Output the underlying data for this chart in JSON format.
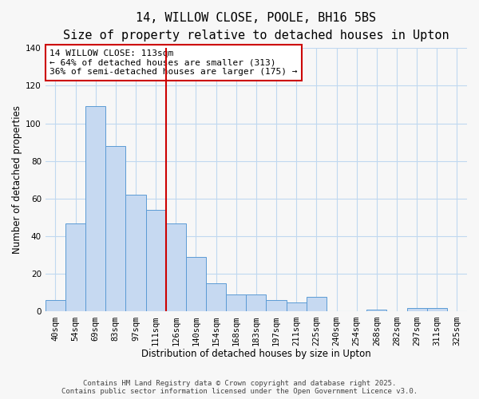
{
  "title": "14, WILLOW CLOSE, POOLE, BH16 5BS",
  "subtitle": "Size of property relative to detached houses in Upton",
  "xlabel": "Distribution of detached houses by size in Upton",
  "ylabel": "Number of detached properties",
  "categories": [
    "40sqm",
    "54sqm",
    "69sqm",
    "83sqm",
    "97sqm",
    "111sqm",
    "126sqm",
    "140sqm",
    "154sqm",
    "168sqm",
    "183sqm",
    "197sqm",
    "211sqm",
    "225sqm",
    "240sqm",
    "254sqm",
    "268sqm",
    "282sqm",
    "297sqm",
    "311sqm",
    "325sqm"
  ],
  "values": [
    6,
    47,
    109,
    88,
    62,
    54,
    47,
    29,
    15,
    9,
    9,
    6,
    5,
    8,
    0,
    0,
    1,
    0,
    2,
    2,
    0
  ],
  "bar_color": "#c6d9f1",
  "bar_edge_color": "#5b9bd5",
  "grid_color": "#c0d8f0",
  "background_color": "#f7f7f7",
  "ylim": [
    0,
    140
  ],
  "yticks": [
    0,
    20,
    40,
    60,
    80,
    100,
    120,
    140
  ],
  "property_line_x": 5.5,
  "property_line_color": "#cc0000",
  "annotation_line1": "14 WILLOW CLOSE: 113sqm",
  "annotation_line2": "← 64% of detached houses are smaller (313)",
  "annotation_line3": "36% of semi-detached houses are larger (175) →",
  "footer_line1": "Contains HM Land Registry data © Crown copyright and database right 2025.",
  "footer_line2": "Contains public sector information licensed under the Open Government Licence v3.0.",
  "title_fontsize": 11,
  "subtitle_fontsize": 9,
  "axis_label_fontsize": 8.5,
  "tick_fontsize": 7.5,
  "annotation_fontsize": 8,
  "footer_fontsize": 6.5
}
